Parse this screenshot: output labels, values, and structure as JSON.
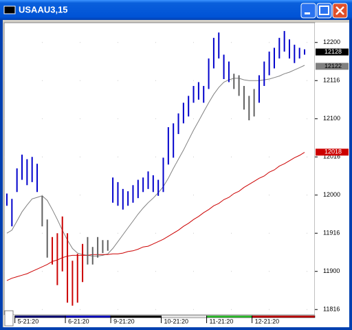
{
  "chart_data": {
    "type": "ohlc",
    "title": "USAAU3,15",
    "categories": [
      null,
      null,
      "5-21:20",
      null,
      null,
      null,
      null,
      null,
      null,
      null,
      null,
      null,
      "6-21:20",
      null,
      null,
      null,
      null,
      null,
      null,
      null,
      null,
      "9-21:20",
      null,
      null,
      null,
      null,
      null,
      null,
      null,
      null,
      null,
      "10-21:20",
      null,
      null,
      null,
      null,
      null,
      null,
      null,
      null,
      "11-21:20",
      null,
      null,
      null,
      null,
      null,
      null,
      null,
      null,
      "12-21:20",
      null,
      null,
      null,
      null,
      null,
      null,
      null,
      null,
      null,
      null
    ],
    "x_band_colors": [
      "#000080",
      "#0000cc",
      "#000000",
      "#ffffff",
      "#33cc33",
      "#cc0000"
    ],
    "bars": {
      "high": [
        120.02,
        119.95,
        120.35,
        120.53,
        120.47,
        120.5,
        120.41,
        119.99,
        119.68,
        119.45,
        119.5,
        119.72,
        119.5,
        119.14,
        119.23,
        119.36,
        119.45,
        119.32,
        119.45,
        119.41,
        119.41,
        120.23,
        120.17,
        120.08,
        120.05,
        120.13,
        120.2,
        120.23,
        120.31,
        120.26,
        120.2,
        120.49,
        120.89,
        120.94,
        121.07,
        121.21,
        121.3,
        121.43,
        121.48,
        121.43,
        121.79,
        122.06,
        122.13,
        121.84,
        121.75,
        121.59,
        121.57,
        121.43,
        121.3,
        121.39,
        121.57,
        121.75,
        121.88,
        121.93,
        122.06,
        122.15,
        122.04,
        121.97,
        121.93,
        121.91
      ],
      "low": [
        119.86,
        119.59,
        120.04,
        120.2,
        120.13,
        120.17,
        120.04,
        119.59,
        119.18,
        119.09,
        118.82,
        119.0,
        118.59,
        118.55,
        118.59,
        118.86,
        119.09,
        119.09,
        119.18,
        119.24,
        119.27,
        119.9,
        119.86,
        119.81,
        119.86,
        119.9,
        119.96,
        120.04,
        120.08,
        120.04,
        119.99,
        120.04,
        120.4,
        120.49,
        120.8,
        120.94,
        121.03,
        121.21,
        121.25,
        121.21,
        121.39,
        121.66,
        121.79,
        121.52,
        121.48,
        121.39,
        121.3,
        121.12,
        120.98,
        121.03,
        121.21,
        121.43,
        121.57,
        121.66,
        121.79,
        121.88,
        121.79,
        121.73,
        121.79,
        121.84
      ],
      "colors": [
        "#0000cc",
        "#0000cc",
        "#0000cc",
        "#0000cc",
        "#0000cc",
        "#0000cc",
        "#0000cc",
        "#606060",
        "#606060",
        "#cc0000",
        "#cc0000",
        "#cc0000",
        "#cc0000",
        "#cc0000",
        "#cc0000",
        "#cc0000",
        "#606060",
        "#606060",
        "#606060",
        "#606060",
        "#606060",
        "#0000cc",
        "#0000cc",
        "#0000cc",
        "#0000cc",
        "#0000cc",
        "#0000cc",
        "#0000cc",
        "#0000cc",
        "#0000cc",
        "#0000cc",
        "#0000cc",
        "#0000cc",
        "#0000cc",
        "#0000cc",
        "#0000cc",
        "#0000cc",
        "#0000cc",
        "#0000cc",
        "#0000cc",
        "#0000cc",
        "#0000cc",
        "#0000cc",
        "#0000cc",
        "#0000cc",
        "#606060",
        "#606060",
        "#606060",
        "#606060",
        "#606060",
        "#0000cc",
        "#0000cc",
        "#0000cc",
        "#0000cc",
        "#0000cc",
        "#0000cc",
        "#0000cc",
        "#0000cc",
        "#0000cc",
        "#0000cc"
      ]
    },
    "lines": [
      {
        "color": "#808080",
        "values": [
          119.5,
          119.54,
          119.66,
          119.78,
          119.87,
          119.95,
          119.97,
          119.99,
          119.93,
          119.81,
          119.68,
          119.54,
          119.41,
          119.3,
          119.24,
          119.22,
          119.21,
          119.2,
          119.2,
          119.21,
          119.23,
          119.3,
          119.39,
          119.48,
          119.57,
          119.66,
          119.75,
          119.83,
          119.9,
          119.96,
          120.03,
          120.11,
          120.22,
          120.35,
          120.47,
          120.59,
          120.72,
          120.85,
          120.97,
          121.09,
          121.21,
          121.32,
          121.41,
          121.48,
          121.51,
          121.53,
          121.53,
          121.51,
          121.5,
          121.5,
          121.5,
          121.51,
          121.52,
          121.54,
          121.56,
          121.59,
          121.61,
          121.64,
          121.67,
          121.7
        ]
      },
      {
        "color": "#cc0000",
        "values": [
          118.88,
          118.91,
          118.93,
          118.95,
          118.97,
          119.0,
          119.03,
          119.06,
          119.09,
          119.13,
          119.15,
          119.18,
          119.2,
          119.21,
          119.21,
          119.21,
          119.21,
          119.22,
          119.22,
          119.22,
          119.22,
          119.23,
          119.23,
          119.24,
          119.26,
          119.27,
          119.29,
          119.32,
          119.33,
          119.36,
          119.39,
          119.42,
          119.46,
          119.5,
          119.54,
          119.59,
          119.63,
          119.68,
          119.72,
          119.77,
          119.81,
          119.86,
          119.89,
          119.94,
          119.97,
          120.02,
          120.05,
          120.1,
          120.14,
          120.18,
          120.22,
          120.25,
          120.3,
          120.33,
          120.38,
          120.41,
          120.45,
          120.49,
          120.52,
          120.56
        ]
      }
    ],
    "markers": [
      {
        "value": 121.875,
        "label": "12128",
        "color": "#000000"
      },
      {
        "value": 121.6875,
        "label": "12122",
        "color": "#808080"
      },
      {
        "value": 120.5625,
        "label": "12018",
        "color": "#cc0000"
      }
    ],
    "ylim": [
      118.43,
      122.25
    ],
    "yticks": [
      {
        "value": 122,
        "label": "12200"
      },
      {
        "value": 121.5,
        "label": "12116"
      },
      {
        "value": 121,
        "label": "12100"
      },
      {
        "value": 120.5,
        "label": "12016"
      },
      {
        "value": 120,
        "label": "12000"
      },
      {
        "value": 119.5,
        "label": "11916"
      },
      {
        "value": 119,
        "label": "11900"
      },
      {
        "value": 118.5,
        "label": "11816"
      }
    ],
    "grid": true
  }
}
